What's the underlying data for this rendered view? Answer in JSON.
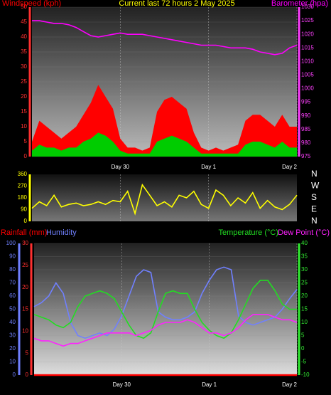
{
  "chart_data": [
    {
      "type": "combo",
      "title": "Current last 72 hours 2 May 2025",
      "x": [
        0,
        2,
        4,
        6,
        8,
        10,
        12,
        14,
        16,
        18,
        20,
        22,
        24,
        26,
        28,
        30,
        32,
        34,
        36,
        38,
        40,
        42,
        44,
        46,
        48,
        50,
        52,
        54,
        56,
        58,
        60,
        62,
        64,
        66,
        68,
        70,
        72
      ],
      "xlim": [
        0,
        72
      ],
      "xticks": [
        {
          "value": 24,
          "label": "Day 30"
        },
        {
          "value": 48,
          "label": "Day 1"
        },
        {
          "value": 72,
          "label": "Day 2"
        }
      ],
      "ylim": [
        0,
        50
      ],
      "yticks": [
        0,
        5,
        10,
        15,
        20,
        25,
        30,
        35,
        40,
        45,
        50
      ],
      "y2lim": [
        975,
        1030
      ],
      "y2ticks": [
        975,
        980,
        985,
        990,
        995,
        1000,
        1005,
        1010,
        1015,
        1020,
        1025,
        1030
      ],
      "grid": true,
      "series": [
        {
          "name": "Windspeed (kph)",
          "type": "area",
          "color": "#ff0000",
          "axis": "y",
          "values": [
            5,
            12,
            10,
            8,
            6,
            8,
            10,
            14,
            18,
            24,
            20,
            16,
            6,
            3,
            3,
            2,
            3,
            15,
            19,
            20,
            18,
            16,
            8,
            3,
            2,
            3,
            2,
            3,
            4,
            12,
            14,
            14,
            12,
            10,
            14,
            10,
            10
          ]
        },
        {
          "type": "area",
          "color": "#00cc00",
          "axis": "y",
          "values": [
            2,
            4,
            3,
            3,
            2,
            3,
            3,
            5,
            6,
            8,
            7,
            5,
            2,
            1,
            1,
            1,
            1,
            5,
            6,
            7,
            6,
            5,
            3,
            1,
            1,
            1,
            1,
            1,
            1,
            4,
            5,
            5,
            4,
            3,
            5,
            3,
            3
          ]
        },
        {
          "name": "Barometer (hpa)",
          "type": "line",
          "color": "#ff00ff",
          "axis": "y2",
          "values": [
            1025,
            1025,
            1024.5,
            1024,
            1024,
            1023.5,
            1022.5,
            1021,
            1019.5,
            1019,
            1019.5,
            1020,
            1020.5,
            1020,
            1020,
            1020,
            1019.5,
            1019,
            1018.5,
            1018,
            1017.5,
            1017,
            1016.5,
            1016,
            1016,
            1016,
            1015.5,
            1015,
            1015,
            1015,
            1014.5,
            1013.5,
            1013,
            1012.5,
            1013,
            1015,
            1016
          ]
        }
      ]
    },
    {
      "type": "line",
      "x": [
        0,
        2,
        4,
        6,
        8,
        10,
        12,
        14,
        16,
        18,
        20,
        22,
        24,
        26,
        28,
        30,
        32,
        34,
        36,
        38,
        40,
        42,
        44,
        46,
        48,
        50,
        52,
        54,
        56,
        58,
        60,
        62,
        64,
        66,
        68,
        70,
        72
      ],
      "xlim": [
        0,
        72
      ],
      "xticks": [
        {
          "value": 24,
          "label": ""
        },
        {
          "value": 48,
          "label": ""
        }
      ],
      "ylim": [
        0,
        360
      ],
      "yticks": [
        0,
        90,
        180,
        270,
        360
      ],
      "y2lim": [
        0,
        360
      ],
      "y2ticks": [
        {
          "value": 0,
          "label": "N"
        },
        {
          "value": 90,
          "label": "E"
        },
        {
          "value": 180,
          "label": "S"
        },
        {
          "value": 270,
          "label": "W"
        },
        {
          "value": 360,
          "label": "N"
        }
      ],
      "series": [
        {
          "type": "line",
          "color": "#ffff00",
          "axis": "y",
          "values": [
            100,
            150,
            120,
            200,
            110,
            130,
            140,
            120,
            130,
            150,
            130,
            160,
            150,
            230,
            60,
            280,
            200,
            120,
            150,
            110,
            200,
            180,
            230,
            130,
            100,
            240,
            200,
            120,
            180,
            140,
            220,
            100,
            160,
            110,
            90,
            130,
            200
          ]
        }
      ]
    },
    {
      "type": "line",
      "x": [
        0,
        2,
        4,
        6,
        8,
        10,
        12,
        14,
        16,
        18,
        20,
        22,
        24,
        26,
        28,
        30,
        32,
        34,
        36,
        38,
        40,
        42,
        44,
        46,
        48,
        50,
        52,
        54,
        56,
        58,
        60,
        62,
        64,
        66,
        68,
        70,
        72
      ],
      "xlim": [
        0,
        72
      ],
      "xticks": [
        {
          "value": 24,
          "label": "Day 30"
        },
        {
          "value": 48,
          "label": "Day 1"
        },
        {
          "value": 72,
          "label": "Day 2"
        }
      ],
      "ylim": [
        0,
        100
      ],
      "yticks": [
        0,
        10,
        20,
        30,
        40,
        50,
        60,
        70,
        80,
        90,
        100
      ],
      "y2lim": [
        -10,
        40
      ],
      "y2ticks": [
        -10,
        -5,
        0,
        5,
        10,
        15,
        20,
        25,
        30,
        35,
        40
      ],
      "y3lim": [
        0,
        30
      ],
      "y3ticks": [
        0,
        5,
        10,
        15,
        20,
        25,
        30
      ],
      "grid": true,
      "series": [
        {
          "name": "Rainfall (mm)",
          "type": "line",
          "color": "#ff0000",
          "axis": "y3",
          "values": [
            0,
            0,
            0,
            0,
            0,
            0,
            0,
            0,
            0,
            0,
            0,
            0,
            0,
            0,
            0,
            0,
            0,
            0,
            0,
            0,
            0,
            0,
            0,
            0,
            0,
            0,
            0,
            0,
            0,
            0,
            0,
            0,
            0,
            0,
            0,
            0,
            0
          ]
        },
        {
          "name": "Humidity",
          "type": "line",
          "color": "#7080ff",
          "axis": "y",
          "values": [
            52,
            55,
            60,
            70,
            62,
            40,
            30,
            28,
            30,
            32,
            30,
            35,
            45,
            60,
            75,
            80,
            78,
            48,
            44,
            42,
            42,
            44,
            48,
            62,
            72,
            80,
            82,
            80,
            45,
            40,
            38,
            40,
            42,
            44,
            50,
            58,
            65
          ]
        },
        {
          "name": "Temperature (°C)",
          "type": "line",
          "color": "#22dd22",
          "axis": "y2",
          "values": [
            13,
            12,
            11,
            9,
            8,
            10,
            16,
            20,
            21,
            22,
            21,
            19,
            14,
            9,
            5,
            4,
            6,
            14,
            21,
            22,
            21,
            21,
            15,
            10,
            7,
            5,
            4,
            6,
            11,
            17,
            23,
            26,
            26,
            22,
            17,
            15,
            15
          ]
        },
        {
          "name": "Dew Point (°C)",
          "type": "line",
          "color": "#ff22ff",
          "axis": "y2",
          "values": [
            4,
            3,
            3,
            2,
            1,
            2,
            2,
            3,
            4,
            5,
            6,
            6,
            6,
            6,
            5,
            6,
            7,
            9,
            10,
            10,
            10,
            11,
            10,
            8,
            6,
            6,
            5,
            6,
            8,
            11,
            13,
            13,
            13,
            12,
            11,
            11,
            10
          ]
        }
      ]
    }
  ]
}
